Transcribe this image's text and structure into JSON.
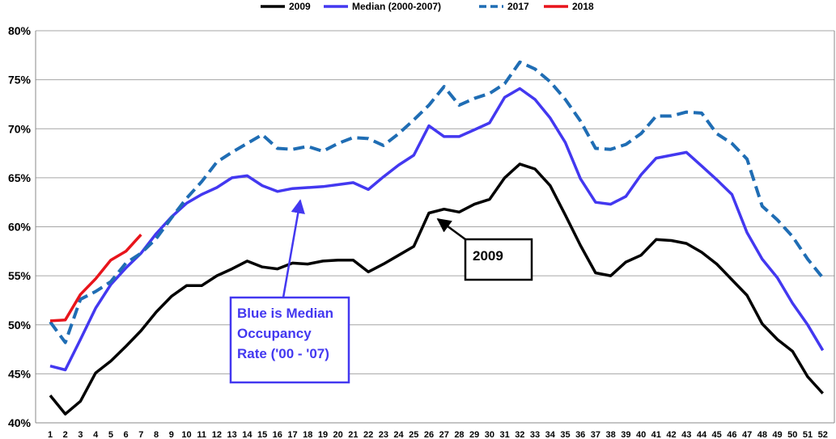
{
  "chart_data": {
    "type": "line",
    "categories": [
      "1",
      "2",
      "3",
      "4",
      "5",
      "6",
      "7",
      "8",
      "9",
      "10",
      "11",
      "12",
      "13",
      "14",
      "15",
      "16",
      "17",
      "18",
      "19",
      "20",
      "21",
      "22",
      "23",
      "24",
      "25",
      "26",
      "27",
      "28",
      "29",
      "30",
      "31",
      "32",
      "33",
      "34",
      "35",
      "36",
      "37",
      "38",
      "39",
      "40",
      "41",
      "42",
      "43",
      "44",
      "45",
      "46",
      "47",
      "48",
      "49",
      "50",
      "51",
      "52"
    ],
    "series": [
      {
        "name": "2009",
        "color": "#000000",
        "dashed": false,
        "values": [
          42.8,
          40.9,
          42.2,
          45.1,
          46.3,
          47.8,
          49.4,
          51.3,
          52.9,
          54.0,
          54.0,
          55.0,
          55.7,
          56.5,
          55.9,
          55.7,
          56.3,
          56.2,
          56.5,
          56.6,
          56.6,
          55.4,
          56.2,
          57.1,
          58.0,
          61.4,
          61.8,
          61.5,
          62.3,
          62.8,
          65.0,
          66.4,
          65.9,
          64.2,
          61.2,
          58.1,
          55.3,
          55.0,
          56.4,
          57.1,
          58.7,
          58.6,
          58.3,
          57.4,
          56.2,
          54.6,
          53.0,
          50.1,
          48.5,
          47.3,
          44.7,
          43.0
        ]
      },
      {
        "name": "Median (2000-2007)",
        "color": "#4338f0",
        "dashed": false,
        "values": [
          45.8,
          45.4,
          48.5,
          51.7,
          54.1,
          55.8,
          57.3,
          59.3,
          61.0,
          62.4,
          63.3,
          64.0,
          65.0,
          65.2,
          64.2,
          63.6,
          63.9,
          64.0,
          64.1,
          64.3,
          64.5,
          63.8,
          65.1,
          66.3,
          67.3,
          70.3,
          69.2,
          69.2,
          69.9,
          70.6,
          73.2,
          74.1,
          73.0,
          71.1,
          68.6,
          64.9,
          62.5,
          62.3,
          63.1,
          65.3,
          67.0,
          67.3,
          67.6,
          66.2,
          64.8,
          63.3,
          59.4,
          56.7,
          54.8,
          52.2,
          50.0,
          47.4
        ]
      },
      {
        "name": "2017",
        "color": "#1f6db4",
        "dashed": true,
        "values": [
          50.3,
          48.2,
          52.6,
          53.4,
          54.4,
          56.3,
          57.3,
          58.8,
          60.9,
          62.9,
          64.6,
          66.6,
          67.6,
          68.5,
          69.4,
          68.0,
          67.9,
          68.2,
          67.7,
          68.5,
          69.1,
          69.0,
          68.3,
          69.5,
          70.9,
          72.4,
          74.3,
          72.4,
          73.1,
          73.6,
          74.6,
          76.8,
          76.1,
          74.8,
          73.0,
          70.8,
          68.0,
          67.9,
          68.4,
          69.5,
          71.3,
          71.3,
          71.7,
          71.6,
          69.5,
          68.5,
          66.9,
          62.1,
          60.7,
          59.0,
          56.7,
          54.8
        ]
      },
      {
        "name": "2018",
        "color": "#e8141b",
        "dashed": false,
        "values": [
          50.4,
          50.5,
          53.1,
          54.7,
          56.6,
          57.5,
          59.2,
          null,
          null,
          null,
          null,
          null,
          null,
          null,
          null,
          null,
          null,
          null,
          null,
          null,
          null,
          null,
          null,
          null,
          null,
          null,
          null,
          null,
          null,
          null,
          null,
          null,
          null,
          null,
          null,
          null,
          null,
          null,
          null,
          null,
          null,
          null,
          null,
          null,
          null,
          null,
          null,
          null,
          null,
          null,
          null,
          null
        ]
      }
    ],
    "ylim": [
      40,
      80
    ],
    "yticks": [
      {
        "value": 40,
        "label": "40%"
      },
      {
        "value": 45,
        "label": "45%"
      },
      {
        "value": 50,
        "label": "50%"
      },
      {
        "value": 55,
        "label": "55%"
      },
      {
        "value": 60,
        "label": "60%"
      },
      {
        "value": 65,
        "label": "65%"
      },
      {
        "value": 70,
        "label": "70%"
      },
      {
        "value": 75,
        "label": "75%"
      },
      {
        "value": 80,
        "label": "80%"
      }
    ],
    "grid": true,
    "legend": "top",
    "annotations": [
      {
        "text": [
          "2009"
        ]
      },
      {
        "text": [
          "Blue is Median",
          "Occupancy",
          "Rate ('00 - '07)"
        ]
      }
    ]
  }
}
